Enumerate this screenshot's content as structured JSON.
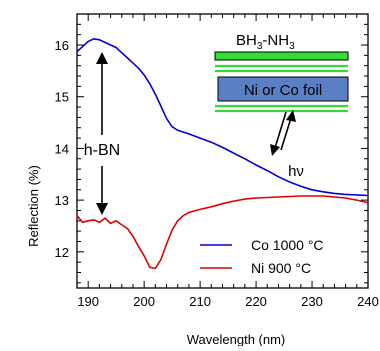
{
  "chart_data": {
    "type": "line",
    "xlabel": "Wavelength (nm)",
    "ylabel": "Reflection (%)",
    "xlim": [
      188,
      240
    ],
    "ylim": [
      11.3,
      16.6
    ],
    "xticks": [
      190,
      200,
      210,
      220,
      230,
      240
    ],
    "yticks": [
      12,
      13,
      14,
      15,
      16
    ],
    "grid": false,
    "legend_position": "bottom-right",
    "series": [
      {
        "name": "Co 1000 °C",
        "color": "#0000dd",
        "x": [
          188,
          189,
          190,
          191,
          192,
          193,
          194,
          195,
          196,
          197,
          198,
          199,
          200,
          201,
          202,
          203,
          204,
          205,
          206,
          208,
          210,
          212,
          214,
          216,
          218,
          220,
          222,
          224,
          226,
          228,
          230,
          232,
          234,
          236,
          238,
          240
        ],
        "y": [
          15.87,
          15.97,
          16.07,
          16.12,
          16.1,
          16.05,
          16.0,
          15.95,
          15.85,
          15.75,
          15.65,
          15.55,
          15.42,
          15.25,
          15.05,
          14.82,
          14.58,
          14.42,
          14.35,
          14.28,
          14.2,
          14.12,
          14.02,
          13.91,
          13.8,
          13.68,
          13.57,
          13.45,
          13.35,
          13.27,
          13.2,
          13.16,
          13.13,
          13.11,
          13.1,
          13.09
        ]
      },
      {
        "name": "Ni 900 °C",
        "color": "#e00000",
        "x": [
          188,
          189,
          190,
          191,
          192,
          193,
          194,
          195,
          196,
          197,
          198,
          199,
          200,
          201,
          202,
          203,
          204,
          205,
          206,
          207,
          208,
          210,
          212,
          214,
          216,
          218,
          220,
          222,
          224,
          226,
          228,
          230,
          232,
          234,
          236,
          238,
          240
        ],
        "y": [
          12.7,
          12.57,
          12.6,
          12.62,
          12.57,
          12.65,
          12.55,
          12.6,
          12.52,
          12.45,
          12.3,
          12.1,
          11.92,
          11.7,
          11.68,
          11.85,
          12.15,
          12.42,
          12.6,
          12.7,
          12.76,
          12.82,
          12.87,
          12.93,
          12.98,
          13.02,
          13.04,
          13.05,
          13.06,
          13.07,
          13.08,
          13.08,
          13.08,
          13.06,
          13.04,
          13.0,
          12.95
        ]
      }
    ],
    "annotations": {
      "hbn_label": "h-BN",
      "precursor_label_main": "BH",
      "precursor_sub1": "3",
      "precursor_dash": "-NH",
      "precursor_sub2": "3",
      "foil_label": "Ni or Co foil",
      "photon_label": "hν"
    }
  }
}
